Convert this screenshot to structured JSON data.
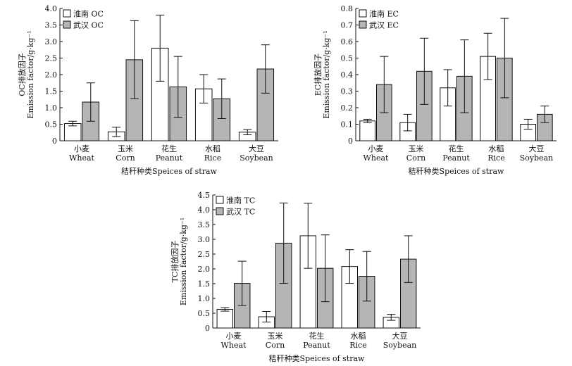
{
  "chart_data": [
    {
      "type": "bar",
      "categories": [
        "小麦\nWheat",
        "玉米\nCorn",
        "花生\nPeanut",
        "水稻\nRice",
        "大豆\nSoybean"
      ],
      "series": [
        {
          "name": "淮南 OC",
          "values": [
            0.52,
            0.27,
            2.8,
            1.57,
            0.26
          ],
          "errors": [
            0.07,
            0.14,
            1.0,
            0.43,
            0.08
          ],
          "color": "#ffffff"
        },
        {
          "name": "武汉 OC",
          "values": [
            1.17,
            2.45,
            1.63,
            1.27,
            2.17
          ],
          "errors": [
            0.58,
            1.18,
            0.92,
            0.6,
            0.73
          ],
          "color": "#b5b5b5"
        }
      ],
      "ylabel_lines": [
        "OC排放因子",
        "Emission factor/g·kg⁻¹"
      ],
      "xlabel": "秸秆种类Speices of straw",
      "ylim": [
        0,
        4.0
      ],
      "yticks": [
        "0",
        "0.5",
        "1.0",
        "1.5",
        "2.0",
        "2.5",
        "3.0",
        "3.5",
        "4.0"
      ],
      "legend": "top-left"
    },
    {
      "type": "bar",
      "categories": [
        "小麦\nWheat",
        "玉米\nCorn",
        "花生\nPeanut",
        "水稻\nRice",
        "大豆\nSoybean"
      ],
      "series": [
        {
          "name": "淮南 EC",
          "values": [
            0.12,
            0.11,
            0.32,
            0.51,
            0.1
          ],
          "errors": [
            0.01,
            0.05,
            0.11,
            0.14,
            0.03
          ],
          "color": "#ffffff"
        },
        {
          "name": "武汉 EC",
          "values": [
            0.34,
            0.42,
            0.39,
            0.5,
            0.16
          ],
          "errors": [
            0.17,
            0.2,
            0.22,
            0.24,
            0.05
          ],
          "color": "#b5b5b5"
        }
      ],
      "ylabel_lines": [
        "EC排放因子",
        "Emission factor/g·kg⁻¹"
      ],
      "xlabel": "秸秆种类Speices of straw",
      "ylim": [
        0,
        0.8
      ],
      "yticks": [
        "0",
        "0.1",
        "0.2",
        "0.3",
        "0.4",
        "0.5",
        "0.6",
        "0.7",
        "0.8"
      ],
      "legend": "top-left"
    },
    {
      "type": "bar",
      "categories": [
        "小麦\nWheat",
        "玉米\nCorn",
        "花生\nPeanut",
        "水稻\nRice",
        "大豆\nSoybean"
      ],
      "series": [
        {
          "name": "淮南 TC",
          "values": [
            0.63,
            0.38,
            3.12,
            2.08,
            0.36
          ],
          "errors": [
            0.06,
            0.18,
            1.1,
            0.57,
            0.1
          ],
          "color": "#ffffff"
        },
        {
          "name": "武汉 TC",
          "values": [
            1.51,
            2.87,
            2.02,
            1.75,
            2.33
          ],
          "errors": [
            0.75,
            1.36,
            1.13,
            0.84,
            0.79
          ],
          "color": "#b5b5b5"
        }
      ],
      "ylabel_lines": [
        "TC排放因子",
        "Emission factor/g·kg⁻¹"
      ],
      "xlabel": "秸秆种类Speices of straw",
      "ylim": [
        0,
        4.5
      ],
      "yticks": [
        "0",
        "0.5",
        "1.0",
        "1.5",
        "2.0",
        "2.5",
        "3.0",
        "3.5",
        "4.0",
        "4.5"
      ],
      "legend": "top-left"
    }
  ]
}
